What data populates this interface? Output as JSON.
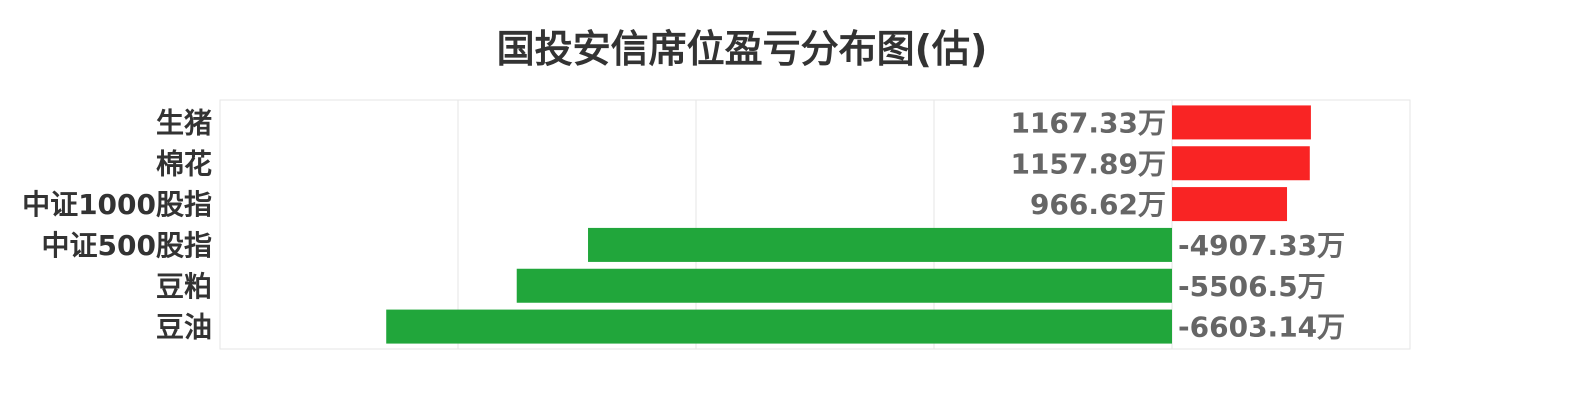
{
  "chart_data": {
    "type": "bar",
    "orientation": "horizontal",
    "title": "国投安信席位盈亏分布图(估)",
    "categories": [
      "生猪",
      "棉花",
      "中证1000股指",
      "中证500股指",
      "豆粕",
      "豆油"
    ],
    "values": [
      1167.33,
      1157.89,
      966.62,
      -4907.33,
      -5506.5,
      -6603.14
    ],
    "data_labels": [
      "1167.33万",
      "1157.89万",
      "966.62万",
      "-4907.33万",
      "-5506.5万",
      "-6603.14万"
    ],
    "unit": "万",
    "xlim": [
      -8000,
      2000
    ],
    "grid_step": 2000,
    "grid": true,
    "colors": {
      "positive": "#f92424",
      "negative": "#21a63b",
      "label": "#666666",
      "category": "#333333"
    }
  }
}
